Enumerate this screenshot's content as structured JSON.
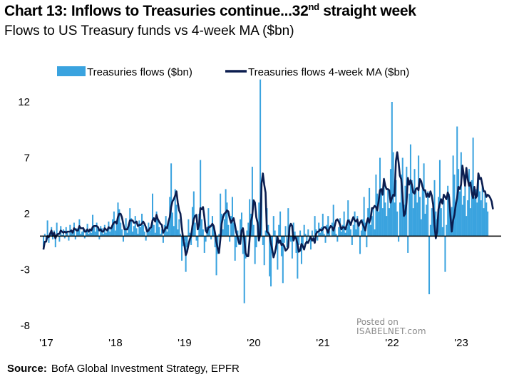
{
  "title": {
    "main": "Chart 13: Inflows to Treasuries continue...32",
    "sup": "nd",
    "tail": " straight week"
  },
  "subtitle": "Flows to US Treasury funds vs 4-week MA ($bn)",
  "source": {
    "label": "Source:",
    "text": "BofA Global Investment Strategy, EPFR"
  },
  "watermark": {
    "line1": "Posted on",
    "line2": "ISABELNET.com"
  },
  "colors": {
    "bars": "#3aa3df",
    "ma_line": "#0b1d4f",
    "zero_line": "#000000"
  },
  "chart_data": {
    "type": "bar",
    "ylim": [
      -8,
      14
    ],
    "yticks": [
      "12",
      "7",
      "2",
      "-3",
      "-8"
    ],
    "ytick_values": [
      12,
      7,
      2,
      -3,
      -8
    ],
    "xticks": [
      "'17",
      "'18",
      "'19",
      "'20",
      "'21",
      "'22",
      "'23"
    ],
    "xtick_positions": [
      0,
      52,
      104,
      156,
      208,
      260,
      312
    ],
    "legend": [
      "Treasuries flows ($bn)",
      "Treasuries flows 4-week MA ($bn)"
    ],
    "legend_position": "top",
    "series": [
      {
        "name": "Treasuries flows ($bn)",
        "values": [
          -1.2,
          0.2,
          -0.4,
          1.4,
          -0.6,
          0.3,
          0.8,
          -0.3,
          0.5,
          -1.0,
          1.2,
          0.2,
          -0.5,
          0.9,
          0.1,
          0.6,
          -0.2,
          0.8,
          0.3,
          -0.4,
          1.0,
          0.4,
          0.2,
          1.2,
          -0.3,
          0.7,
          0.5,
          1.5,
          0.2,
          0.4,
          0.8,
          -0.2,
          0.6,
          1.1,
          0.2,
          0.5,
          0.3,
          1.9,
          0.8,
          0.4,
          1.2,
          0.6,
          -0.3,
          0.9,
          0.7,
          0.2,
          1.0,
          0.3,
          0.6,
          1.3,
          0.4,
          0.8,
          1.5,
          2.2,
          0.5,
          1.0,
          3.0,
          2.4,
          1.2,
          0.6,
          -0.5,
          0.8,
          1.6,
          0.3,
          1.1,
          2.5,
          1.6,
          0.4,
          0.9,
          1.8,
          0.7,
          0.2,
          1.4,
          0.8,
          2.0,
          1.0,
          0.4,
          -0.4,
          0.6,
          1.2,
          0.5,
          0.9,
          3.8,
          1.0,
          0.3,
          2.2,
          1.5,
          0.8,
          0.2,
          0.6,
          -0.6,
          1.0,
          1.8,
          0.4,
          1.3,
          3.5,
          6.5,
          2.1,
          0.9,
          4.2,
          2.8,
          0.6,
          1.5,
          0.2,
          -2.2,
          -0.9,
          -0.4,
          -3.2,
          -1.0,
          1.5,
          0.3,
          -0.8,
          2.6,
          4.0,
          1.2,
          -0.4,
          -1.0,
          2.0,
          6.8,
          1.5,
          0.6,
          -1.5,
          -0.5,
          0.8,
          2.5,
          1.0,
          -0.3,
          1.8,
          0.8,
          -1.0,
          -3.5,
          -1.6,
          0.2,
          3.8,
          2.0,
          0.6,
          1.5,
          4.2,
          3.0,
          1.0,
          -0.5,
          1.8,
          3.5,
          1.2,
          -2.2,
          -1.0,
          0.5,
          -0.8,
          1.5,
          2.1,
          -1.6,
          -6.0,
          -2.0,
          0.5,
          1.2,
          3.3,
          2.0,
          6.2,
          1.0,
          -2.5,
          -1.0,
          0.8,
          3.0,
          14.0,
          4.5,
          -0.8,
          -2.6,
          0.5,
          2.5,
          1.0,
          -3.6,
          -4.5,
          -1.5,
          1.8,
          0.5,
          -1.2,
          -3.0,
          1.0,
          2.2,
          -1.8,
          -4.2,
          -0.6,
          0.9,
          -1.0,
          2.5,
          1.0,
          -0.5,
          -2.0,
          1.2,
          0.4,
          -1.5,
          -3.8,
          -0.8,
          0.5,
          -2.5,
          -1.0,
          1.0,
          0.2,
          -0.7,
          0.6,
          -0.3,
          -1.2,
          0.5,
          -0.5,
          1.8,
          0.6,
          -0.4,
          1.2,
          0.3,
          0.8,
          2.0,
          0.2,
          -0.6,
          1.0,
          1.8,
          0.5,
          0.0,
          1.2,
          2.8,
          1.0,
          0.2,
          -0.5,
          0.8,
          1.6,
          0.4,
          1.0,
          2.2,
          0.3,
          0.8,
          3.2,
          1.5,
          0.6,
          -0.8,
          1.0,
          2.2,
          0.6,
          1.8,
          0.8,
          -1.6,
          0.5,
          1.5,
          3.5,
          1.2,
          -1.0,
          2.5,
          4.3,
          1.0,
          1.8,
          2.6,
          0.6,
          5.5,
          3.8,
          2.2,
          7.0,
          4.0,
          2.5,
          5.2,
          3.0,
          1.8,
          4.2,
          2.5,
          6.0,
          12.0,
          7.5,
          3.0,
          5.0,
          2.2,
          -0.5,
          3.0,
          5.5,
          7.0,
          2.8,
          4.5,
          6.2,
          -1.5,
          3.8,
          8.2,
          5.0,
          2.5,
          6.0,
          4.2,
          3.0,
          7.2,
          3.5,
          1.5,
          4.5,
          6.5,
          2.0,
          2.8,
          4.0,
          -5.2,
          1.0,
          2.5,
          3.0,
          5.0,
          2.2,
          1.5,
          3.5,
          6.8,
          2.5,
          0.8,
          3.2,
          -3.2,
          1.0,
          4.5,
          3.8,
          1.5,
          2.6,
          7.2,
          5.5,
          3.0,
          9.8,
          6.0,
          4.0,
          7.5,
          2.8,
          3.6,
          5.5,
          1.8,
          3.2,
          6.0,
          2.5,
          5.0,
          8.8,
          3.5,
          4.2,
          3.0,
          5.2,
          4.0,
          3.2,
          4.5,
          2.5,
          3.8,
          3.0,
          2.2
        ]
      },
      {
        "name": "Treasuries flows 4-week MA ($bn)",
        "values": [
          -1.2,
          -0.5,
          -0.5,
          0.0,
          -0.1,
          0.2,
          0.5,
          0.0,
          0.3,
          -0.2,
          0.1,
          0.2,
          0.2,
          0.5,
          0.4,
          0.3,
          0.4,
          0.3,
          0.4,
          0.4,
          0.4,
          0.5,
          0.3,
          0.7,
          0.6,
          0.5,
          0.5,
          0.9,
          0.7,
          0.7,
          0.7,
          0.4,
          0.4,
          0.6,
          0.4,
          0.6,
          0.5,
          0.8,
          0.9,
          0.9,
          0.9,
          0.8,
          0.5,
          0.6,
          0.4,
          0.4,
          0.7,
          0.6,
          0.5,
          0.8,
          0.7,
          0.7,
          1.0,
          1.2,
          1.3,
          1.1,
          1.7,
          2.0,
          2.0,
          1.7,
          1.1,
          0.6,
          0.6,
          0.6,
          0.9,
          1.4,
          1.4,
          1.4,
          1.2,
          1.2,
          1.3,
          0.9,
          1.0,
          1.0,
          1.1,
          1.3,
          1.1,
          0.8,
          0.4,
          0.5,
          0.7,
          0.8,
          1.4,
          1.6,
          1.3,
          1.9,
          1.5,
          1.3,
          1.1,
          1.0,
          0.3,
          0.5,
          0.8,
          0.7,
          1.3,
          1.7,
          2.6,
          3.1,
          3.3,
          3.6,
          4.0,
          3.0,
          2.3,
          2.0,
          0.8,
          -0.2,
          -0.8,
          -1.7,
          -1.4,
          -0.8,
          -0.3,
          0.0,
          0.9,
          1.5,
          1.8,
          1.9,
          0.6,
          1.0,
          2.5,
          2.4,
          2.6,
          1.7,
          0.5,
          0.3,
          0.8,
          0.8,
          0.9,
          1.1,
          0.9,
          0.3,
          -0.5,
          -1.1,
          -1.5,
          -0.3,
          1.1,
          1.7,
          2.0,
          2.1,
          2.3,
          2.2,
          1.6,
          1.2,
          1.4,
          1.6,
          1.0,
          0.3,
          -0.1,
          -0.6,
          -0.7,
          0.5,
          0.7,
          -0.2,
          -1.5,
          -1.8,
          -1.8,
          -0.3,
          1.3,
          1.8,
          3.2,
          3.0,
          1.7,
          1.2,
          -0.4,
          0.2,
          4.7,
          5.6,
          4.6,
          3.9,
          0.4,
          0.3,
          0.1,
          -0.6,
          -1.2,
          -1.9,
          -1.5,
          -0.9,
          -0.1,
          -0.6,
          -0.4,
          -0.8,
          -0.7,
          -0.9,
          -1.3,
          -1.2,
          -1.0,
          0.8,
          1.1,
          0.9,
          -0.4,
          -0.1,
          -0.2,
          -0.7,
          -1.4,
          -1.3,
          -0.7,
          -0.9,
          -1.2,
          -0.7,
          -0.5,
          -0.6,
          -0.3,
          -0.1,
          -0.4,
          -0.2,
          -0.6,
          0.2,
          0.4,
          0.4,
          0.6,
          0.5,
          0.6,
          0.8,
          0.8,
          0.6,
          0.3,
          0.7,
          0.9,
          0.8,
          0.5,
          0.9,
          1.4,
          1.5,
          1.3,
          1.0,
          0.6,
          0.8,
          0.8,
          0.6,
          1.0,
          1.4,
          1.3,
          1.0,
          1.4,
          1.7,
          1.4,
          1.3,
          1.5,
          0.9,
          1.2,
          1.4,
          1.1,
          0.8,
          0.5,
          1.2,
          1.6,
          1.2,
          1.6,
          2.5,
          2.5,
          2.7,
          2.6,
          2.3,
          3.1,
          4.1,
          4.2,
          3.7,
          5.1,
          4.5,
          4.2,
          4.2,
          4.1,
          3.0,
          3.4,
          3.7,
          3.6,
          6.7,
          7.5,
          6.6,
          5.4,
          5.1,
          3.7,
          1.8,
          2.0,
          3.0,
          5.2,
          4.6,
          5.0,
          4.6,
          3.9,
          3.8,
          4.2,
          4.3,
          4.1,
          5.1,
          4.9,
          4.4,
          4.1,
          4.1,
          3.5,
          3.8,
          3.5,
          4.0,
          3.6,
          2.8,
          1.0,
          -0.2,
          0.4,
          2.4,
          2.9,
          3.3,
          2.9,
          3.7,
          3.5,
          3.3,
          3.9,
          3.5,
          1.8,
          0.4,
          1.4,
          1.9,
          2.8,
          3.4,
          4.4,
          4.2,
          4.6,
          6.3,
          5.5,
          4.5,
          6.1,
          5.1,
          4.5,
          4.8,
          3.9,
          3.4,
          4.4,
          3.4,
          3.6,
          5.6,
          5.1,
          5.2,
          4.6,
          4.0,
          4.0,
          3.5,
          3.7,
          3.6,
          3.4,
          3.1,
          2.4
        ]
      }
    ]
  }
}
